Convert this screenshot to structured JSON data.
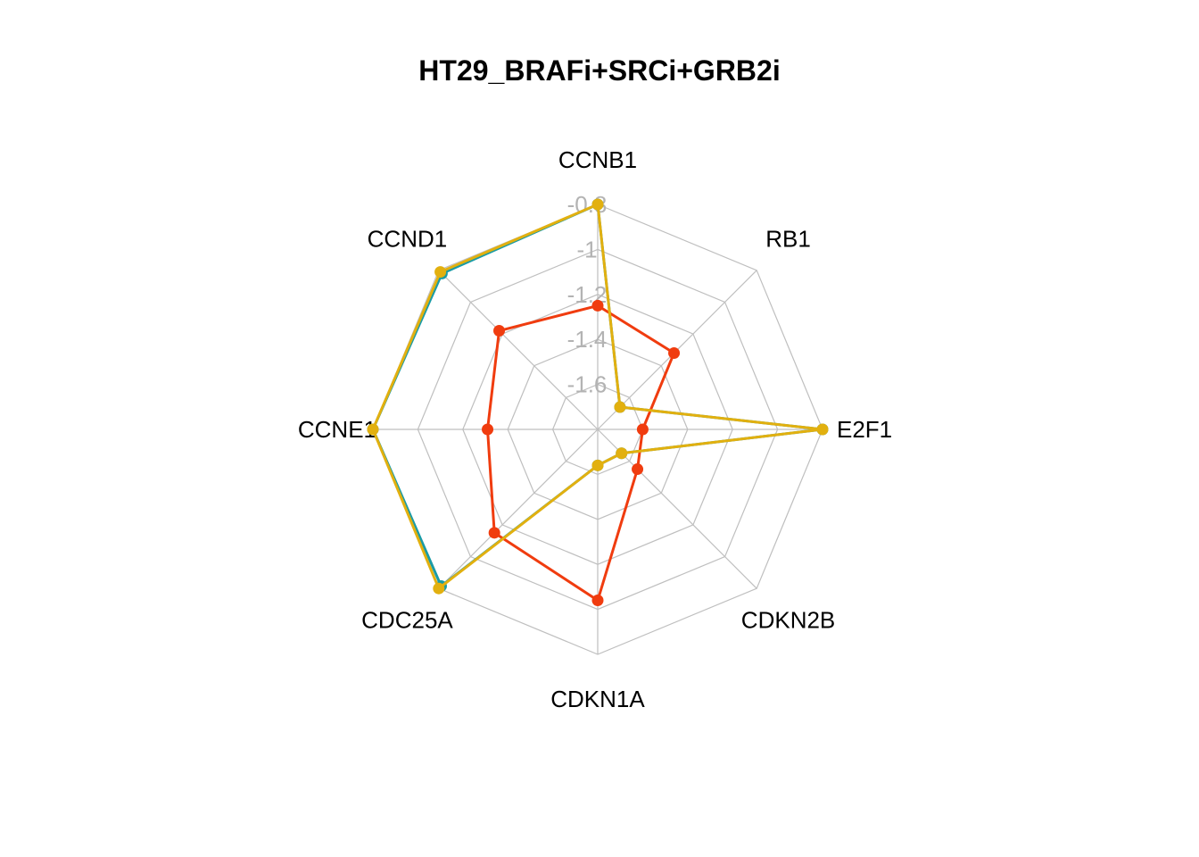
{
  "chart_data": {
    "type": "radar",
    "title": "HT29_BRAFi+SRCi+GRB2i",
    "axes": [
      "CCNB1",
      "RB1",
      "E2F1",
      "CDKN2B",
      "CDKN1A",
      "CDC25A",
      "CCNE1",
      "CCND1"
    ],
    "r_range": [
      -1.8,
      -0.8
    ],
    "ticks": [
      "-0.8",
      "-1",
      "-1.2",
      "-1.4",
      "-1.6"
    ],
    "tick_values": [
      -0.8,
      -1.0,
      -1.2,
      -1.4,
      -1.6
    ],
    "grid": true,
    "series": [
      {
        "color": "#1a9ba6",
        "values": [
          -0.8,
          -1.66,
          -0.8,
          -1.65,
          -1.64,
          -0.815,
          -0.8,
          -0.82
        ]
      },
      {
        "color": "#f03c0f",
        "values": [
          -1.25,
          -1.32,
          -1.6,
          -1.55,
          -1.04,
          -1.15,
          -1.31,
          -1.18
        ]
      },
      {
        "color": "#e2b00f",
        "values": [
          -0.8,
          -1.66,
          -0.8,
          -1.65,
          -1.64,
          -0.8,
          -0.8,
          -0.81
        ]
      }
    ]
  }
}
